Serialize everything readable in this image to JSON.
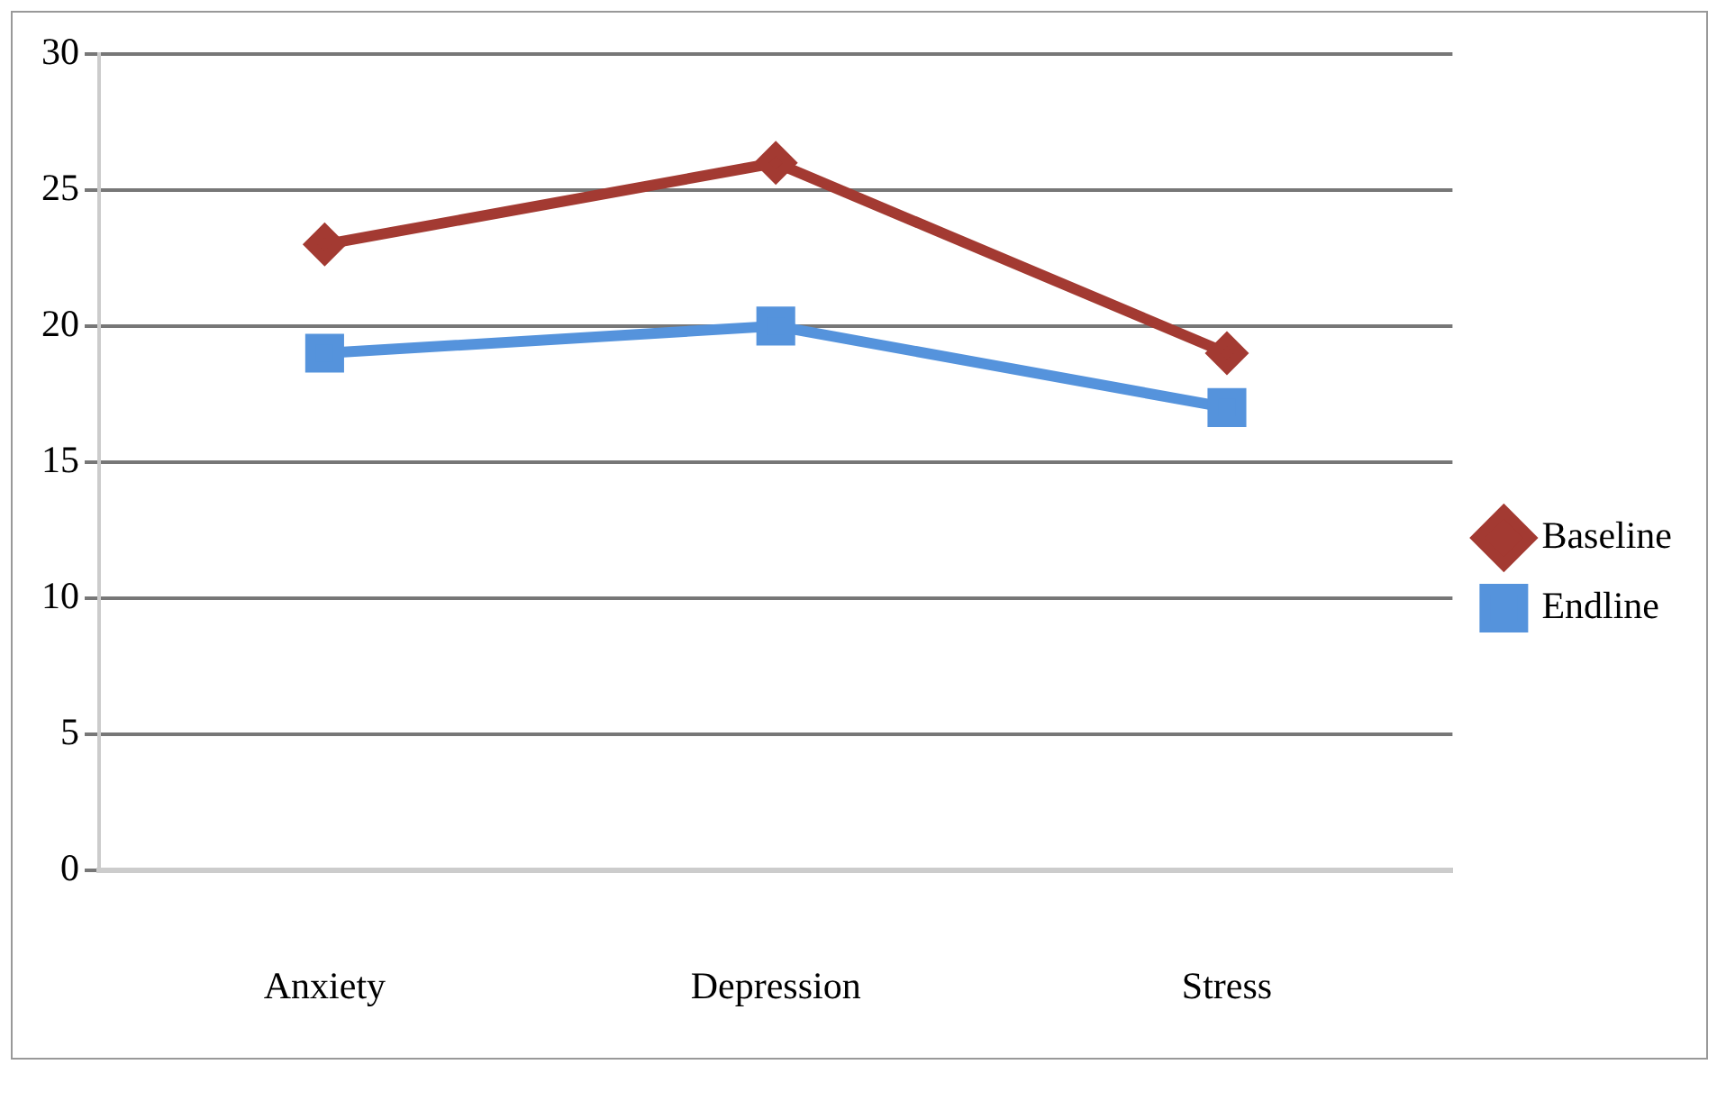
{
  "chart_data": {
    "type": "line",
    "categories": [
      "Anxiety",
      "Depression",
      "Stress"
    ],
    "series": [
      {
        "name": "Baseline",
        "color": "#a33a32",
        "values": [
          23,
          26,
          19
        ],
        "marker": "diamond"
      },
      {
        "name": "Endline",
        "color": "#5593dc",
        "values": [
          19,
          20,
          17
        ],
        "marker": "square"
      }
    ],
    "ylim": [
      0,
      30
    ],
    "yticks": [
      0,
      5,
      10,
      15,
      20,
      25,
      30
    ],
    "grid": "y",
    "legend": "right",
    "line_style": "solid"
  }
}
